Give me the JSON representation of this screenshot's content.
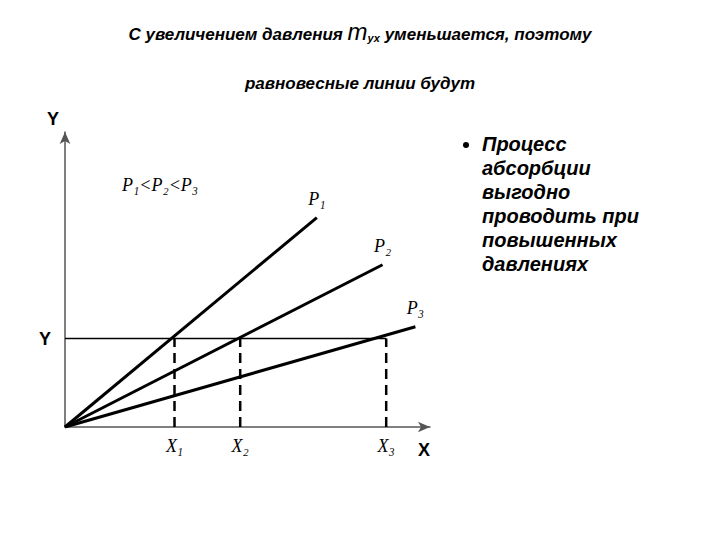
{
  "slide": {
    "title": [
      {
        "text": "С увеличением давления "
      },
      {
        "text": "m",
        "big": true
      },
      {
        "text": "ух",
        "sub": true
      },
      {
        "text": " уменьшается, поэтому равновесные линии будут"
      }
    ],
    "bullets": [
      "Процесс абсорбции выгодно проводить при повышенных давлениях"
    ]
  },
  "chart_data": {
    "type": "line",
    "x_label": "X",
    "y_label": "Y",
    "annotations": [
      "P₁<P₂<P₃"
    ],
    "xlim": [
      0,
      10
    ],
    "ylim": [
      0,
      10
    ],
    "xticks": [
      {
        "value": 3,
        "label": "X₁"
      },
      {
        "value": 4.8,
        "label": "X₂"
      },
      {
        "value": 8.8,
        "label": "X₃"
      }
    ],
    "yticks": [
      {
        "value": 3,
        "label": "Y"
      }
    ],
    "grid": false,
    "series": [
      {
        "name": "P₁",
        "color": "#000000",
        "x": [
          0,
          6.9
        ],
        "values": [
          0,
          7.1
        ]
      },
      {
        "name": "P₂",
        "color": "#000000",
        "x": [
          0,
          8.7
        ],
        "values": [
          0,
          5.5
        ]
      },
      {
        "name": "P₃",
        "color": "#000000",
        "x": [
          0,
          9.6
        ],
        "values": [
          0,
          3.4
        ]
      }
    ]
  }
}
